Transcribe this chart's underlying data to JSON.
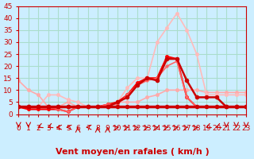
{
  "background_color": "#cceeff",
  "grid_color": "#aaddcc",
  "xlabel": "Vent moyen/en rafales ( km/h )",
  "xlabel_color": "#cc0000",
  "xlabel_fontsize": 8,
  "tick_color": "#cc0000",
  "tick_fontsize": 6.5,
  "xlim": [
    0,
    23
  ],
  "ylim": [
    0,
    45
  ],
  "yticks": [
    0,
    5,
    10,
    15,
    20,
    25,
    30,
    35,
    40,
    45
  ],
  "xticks": [
    0,
    1,
    2,
    3,
    4,
    5,
    6,
    7,
    8,
    9,
    10,
    11,
    12,
    13,
    14,
    15,
    16,
    17,
    18,
    19,
    20,
    21,
    22,
    23
  ],
  "series": [
    {
      "x": [
        0,
        1,
        2,
        3,
        4,
        5,
        6,
        7,
        8,
        9,
        10,
        11,
        12,
        13,
        14,
        15,
        16,
        17,
        18,
        19,
        20,
        21,
        22,
        23
      ],
      "y": [
        14,
        10,
        8,
        3,
        3,
        5,
        3,
        3,
        3,
        4,
        5,
        5,
        5,
        7,
        8,
        10,
        10,
        10,
        10,
        9,
        9,
        9,
        9,
        9
      ],
      "color": "#ffaaaa",
      "linewidth": 1.2,
      "marker": "o",
      "markersize": 2.5,
      "zorder": 2
    },
    {
      "x": [
        0,
        1,
        2,
        3,
        4,
        5,
        6,
        7,
        8,
        9,
        10,
        11,
        12,
        13,
        14,
        15,
        16,
        17,
        18,
        19,
        20,
        21,
        22,
        23
      ],
      "y": [
        3,
        3,
        3,
        3,
        3,
        3,
        3,
        3,
        3,
        3,
        5,
        7,
        12,
        15,
        14,
        23,
        23,
        14,
        7,
        7,
        7,
        3,
        3,
        3
      ],
      "color": "#cc0000",
      "linewidth": 1.8,
      "marker": "o",
      "markersize": 3,
      "zorder": 4
    },
    {
      "x": [
        0,
        1,
        2,
        3,
        4,
        5,
        6,
        7,
        8,
        9,
        10,
        11,
        12,
        13,
        14,
        15,
        16,
        17,
        18,
        19,
        20,
        21,
        22,
        23
      ],
      "y": [
        3,
        2,
        2,
        2,
        2,
        1,
        3,
        3,
        3,
        4,
        5,
        8,
        13,
        15,
        15,
        24,
        23,
        7,
        3,
        3,
        3,
        3,
        3,
        3
      ],
      "color": "#ff0000",
      "linewidth": 1.5,
      "marker": "o",
      "markersize": 2.5,
      "zorder": 3
    },
    {
      "x": [
        0,
        1,
        2,
        3,
        4,
        5,
        6,
        7,
        8,
        9,
        10,
        11,
        12,
        13,
        14,
        15,
        16,
        17,
        18,
        19,
        20,
        21,
        22,
        23
      ],
      "y": [
        3,
        3,
        3,
        3,
        2,
        1,
        3,
        3,
        3,
        4,
        4,
        8,
        12,
        14,
        15,
        20,
        22,
        7,
        3,
        3,
        3,
        3,
        3,
        3
      ],
      "color": "#ff6666",
      "linewidth": 1.2,
      "marker": "o",
      "markersize": 2,
      "zorder": 3
    },
    {
      "x": [
        0,
        1,
        2,
        3,
        4,
        5,
        6,
        7,
        8,
        9,
        10,
        11,
        12,
        13,
        14,
        15,
        16,
        17,
        18,
        19,
        20,
        21,
        22,
        23
      ],
      "y": [
        3,
        3,
        3,
        8,
        8,
        6,
        5,
        3,
        3,
        4,
        5,
        11,
        15,
        15,
        30,
        36,
        42,
        35,
        25,
        8,
        8,
        8,
        8,
        8
      ],
      "color": "#ffbbbb",
      "linewidth": 1.2,
      "marker": "o",
      "markersize": 2.5,
      "zorder": 2
    },
    {
      "x": [
        0,
        1,
        2,
        3,
        4,
        5,
        6,
        7,
        8,
        9,
        10,
        11,
        12,
        13,
        14,
        15,
        16,
        17,
        18,
        19,
        20,
        21,
        22,
        23
      ],
      "y": [
        3,
        3,
        3,
        3,
        3,
        3,
        3,
        3,
        3,
        3,
        3,
        3,
        3,
        3,
        3,
        3,
        3,
        3,
        3,
        3,
        3,
        3,
        3,
        3
      ],
      "color": "#cc0000",
      "linewidth": 2.5,
      "marker": "o",
      "markersize": 3,
      "zorder": 5
    }
  ],
  "wind_arrows": {
    "x": [
      0,
      1,
      2,
      3,
      4,
      5,
      6,
      7,
      8,
      9,
      10,
      11,
      12,
      13,
      14,
      15,
      16,
      17,
      18,
      19,
      20,
      21,
      22,
      23
    ],
    "angles": [
      180,
      180,
      210,
      210,
      270,
      270,
      0,
      270,
      0,
      0,
      45,
      45,
      45,
      45,
      45,
      45,
      45,
      45,
      45,
      210,
      210,
      180,
      180,
      180
    ],
    "color": "#cc0000"
  }
}
